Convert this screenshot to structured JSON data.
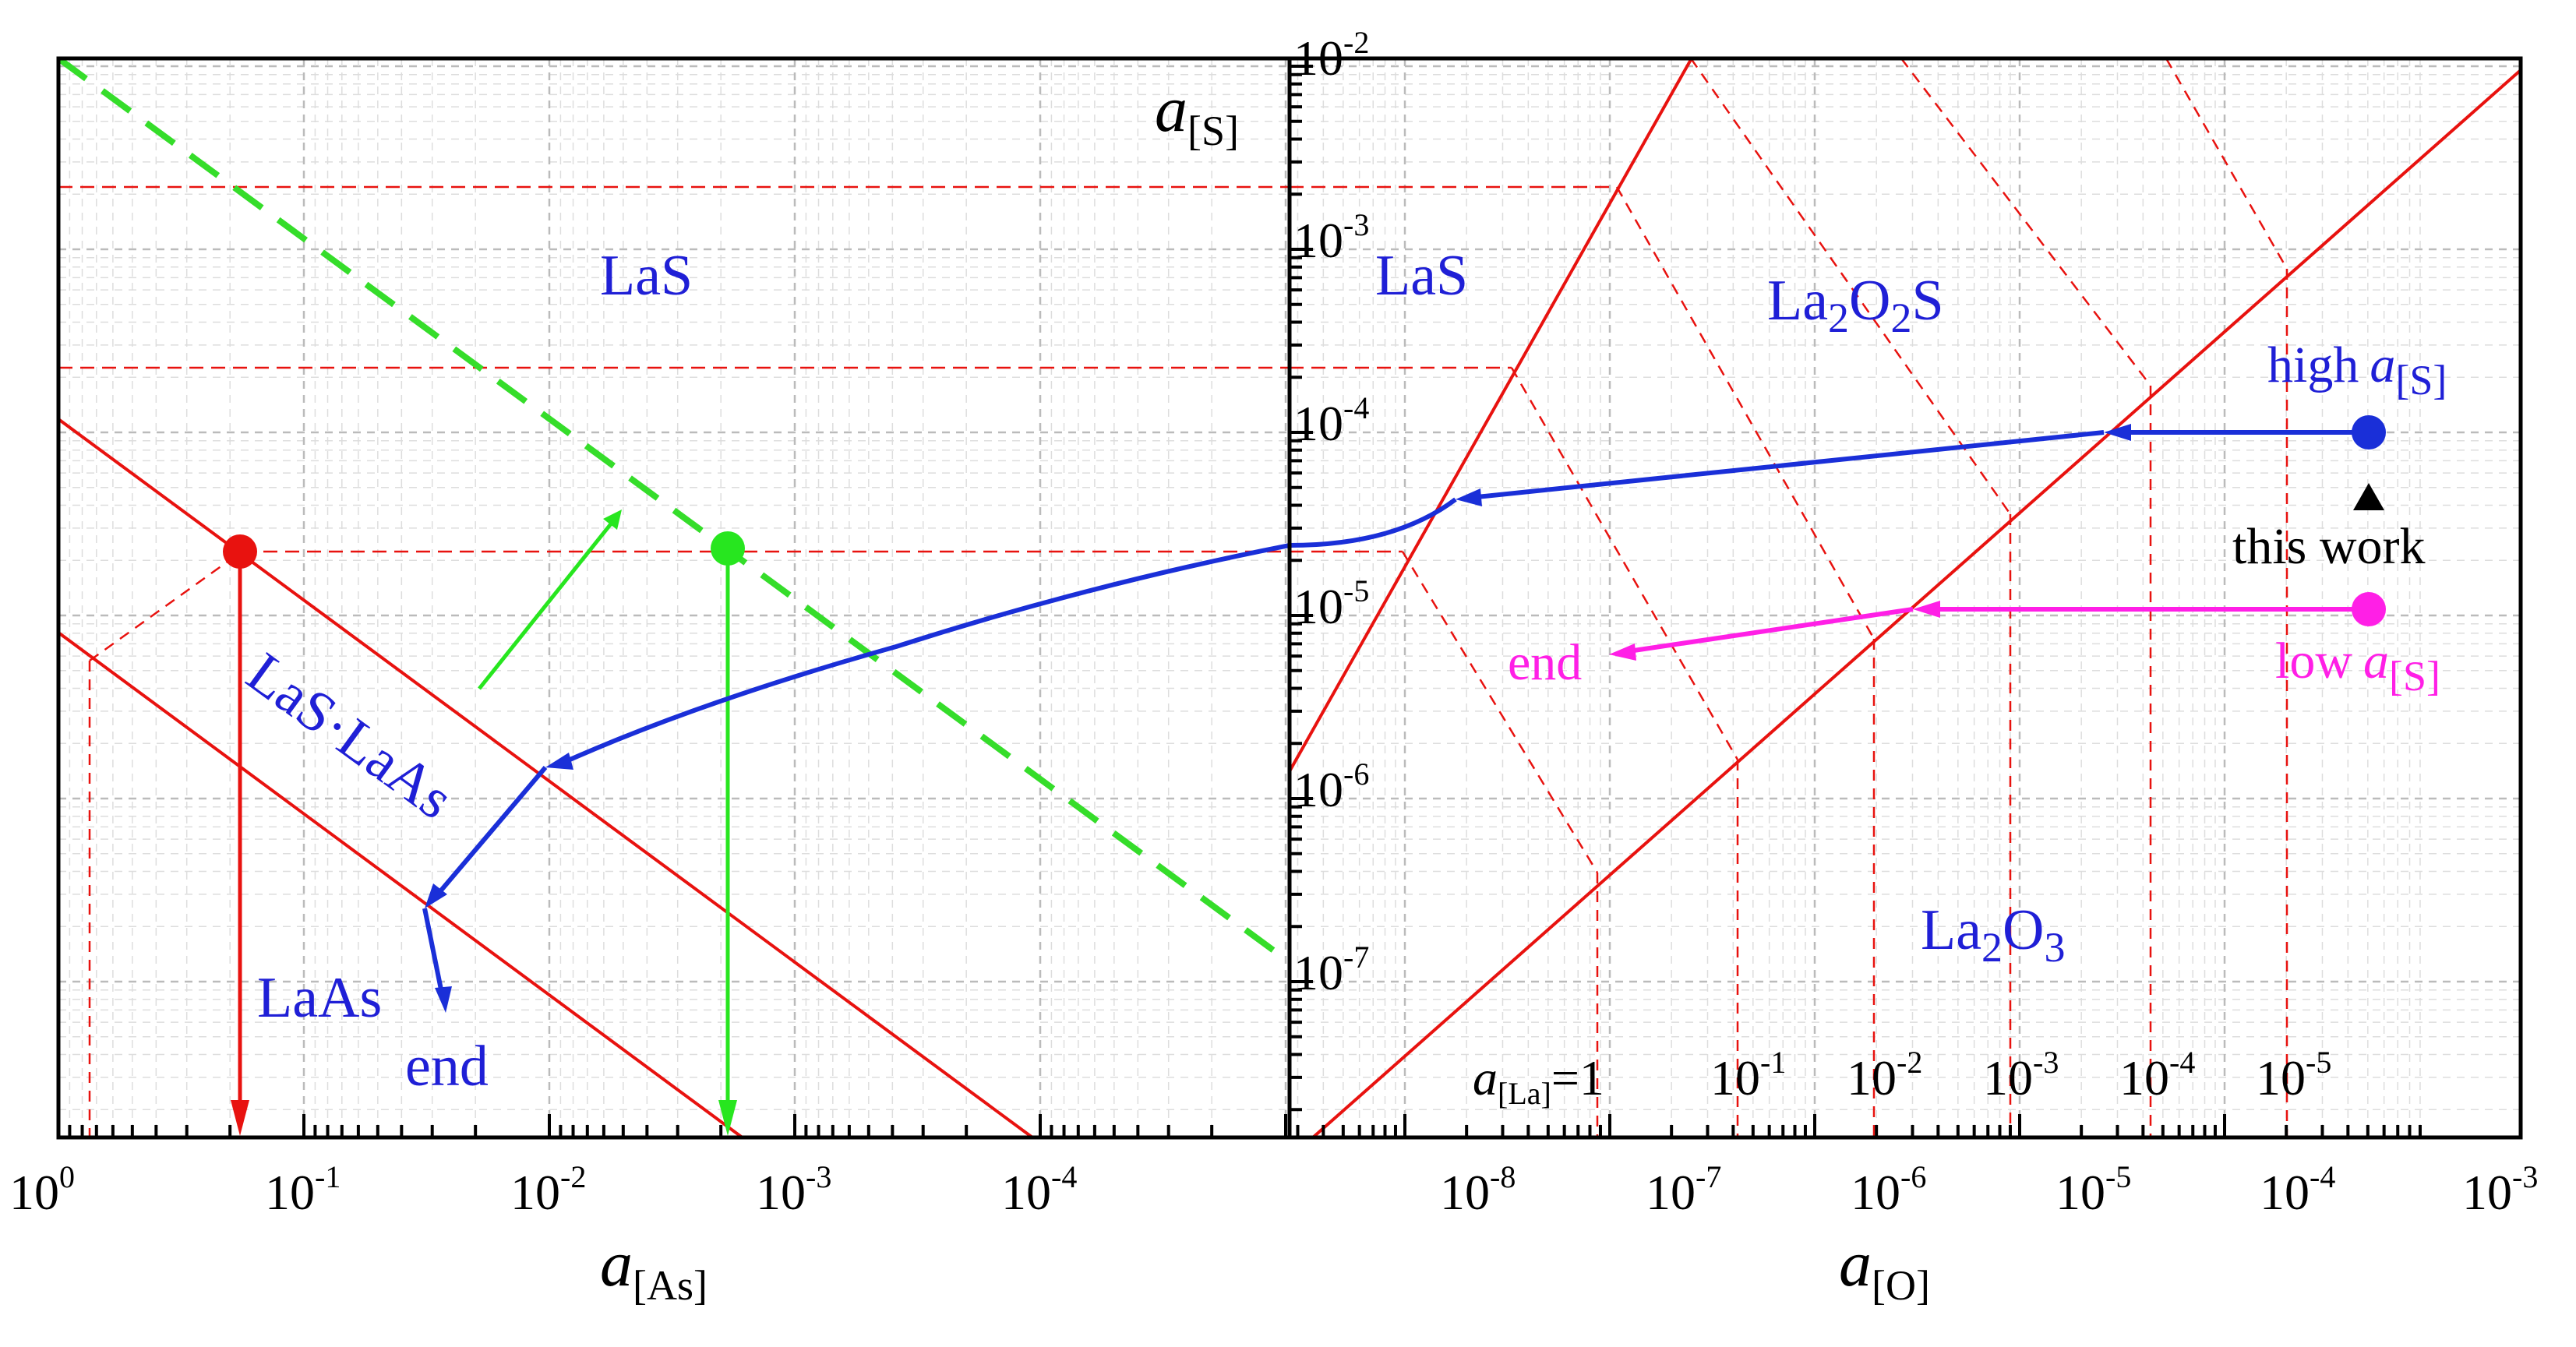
{
  "chart_data": {
    "type": "line",
    "description_panels": [
      "left",
      "right"
    ],
    "left_panel": {
      "xlabel": "a",
      "xlabel_sub": "[As]",
      "x_scale": "log-reversed",
      "xlim_exp": [
        0,
        -5
      ],
      "xticks": [
        {
          "base": "10",
          "exp": "0"
        },
        {
          "base": "10",
          "exp": "-1"
        },
        {
          "base": "10",
          "exp": "-2"
        },
        {
          "base": "10",
          "exp": "-3"
        },
        {
          "base": "10",
          "exp": "-4"
        }
      ],
      "regions": [
        "LaS",
        "LaS·LaAs",
        "LaAs"
      ],
      "end_label": "end"
    },
    "right_panel": {
      "xlabel": "a",
      "xlabel_sub": "[O]",
      "x_scale": "log",
      "xlim_exp": [
        -9,
        -3
      ],
      "xticks": [
        {
          "base": "10",
          "exp": "-8"
        },
        {
          "base": "10",
          "exp": "-7"
        },
        {
          "base": "10",
          "exp": "-6"
        },
        {
          "base": "10",
          "exp": "-5"
        },
        {
          "base": "10",
          "exp": "-4"
        },
        {
          "base": "10",
          "exp": "-3"
        }
      ],
      "regions": [
        "LaS",
        "La2O2S",
        "La2O3"
      ],
      "la_activity_label": "a",
      "la_activity_sub": "[La]",
      "la_activity_values": [
        {
          "text": "=1"
        },
        {
          "base": "10",
          "exp": "-1"
        },
        {
          "base": "10",
          "exp": "-2"
        },
        {
          "base": "10",
          "exp": "-3"
        },
        {
          "base": "10",
          "exp": "-4"
        },
        {
          "base": "10",
          "exp": "-5"
        }
      ],
      "annotations": {
        "high": "high",
        "low": "low",
        "this_work": "this work",
        "end": "end",
        "as_symbol": "a",
        "as_sub": "[S]"
      }
    },
    "y_axis": {
      "ylabel": "a",
      "ylabel_sub": "[S]",
      "y_scale": "log",
      "ylim_exp": [
        -7.6,
        -2
      ],
      "yticks": [
        {
          "base": "10",
          "exp": "-2"
        },
        {
          "base": "10",
          "exp": "-3"
        },
        {
          "base": "10",
          "exp": "-4"
        },
        {
          "base": "10",
          "exp": "-5"
        },
        {
          "base": "10",
          "exp": "-6"
        },
        {
          "base": "10",
          "exp": "-7"
        }
      ]
    },
    "colors": {
      "boundary": "#e8120f",
      "path_blue": "#1a2fd8",
      "path_magenta": "#ff1fe6",
      "path_green": "#27e61f",
      "dashed_green": "#35dd2a",
      "text_blue": "#1f1fd6",
      "text_magenta": "#ff1fe6"
    }
  }
}
